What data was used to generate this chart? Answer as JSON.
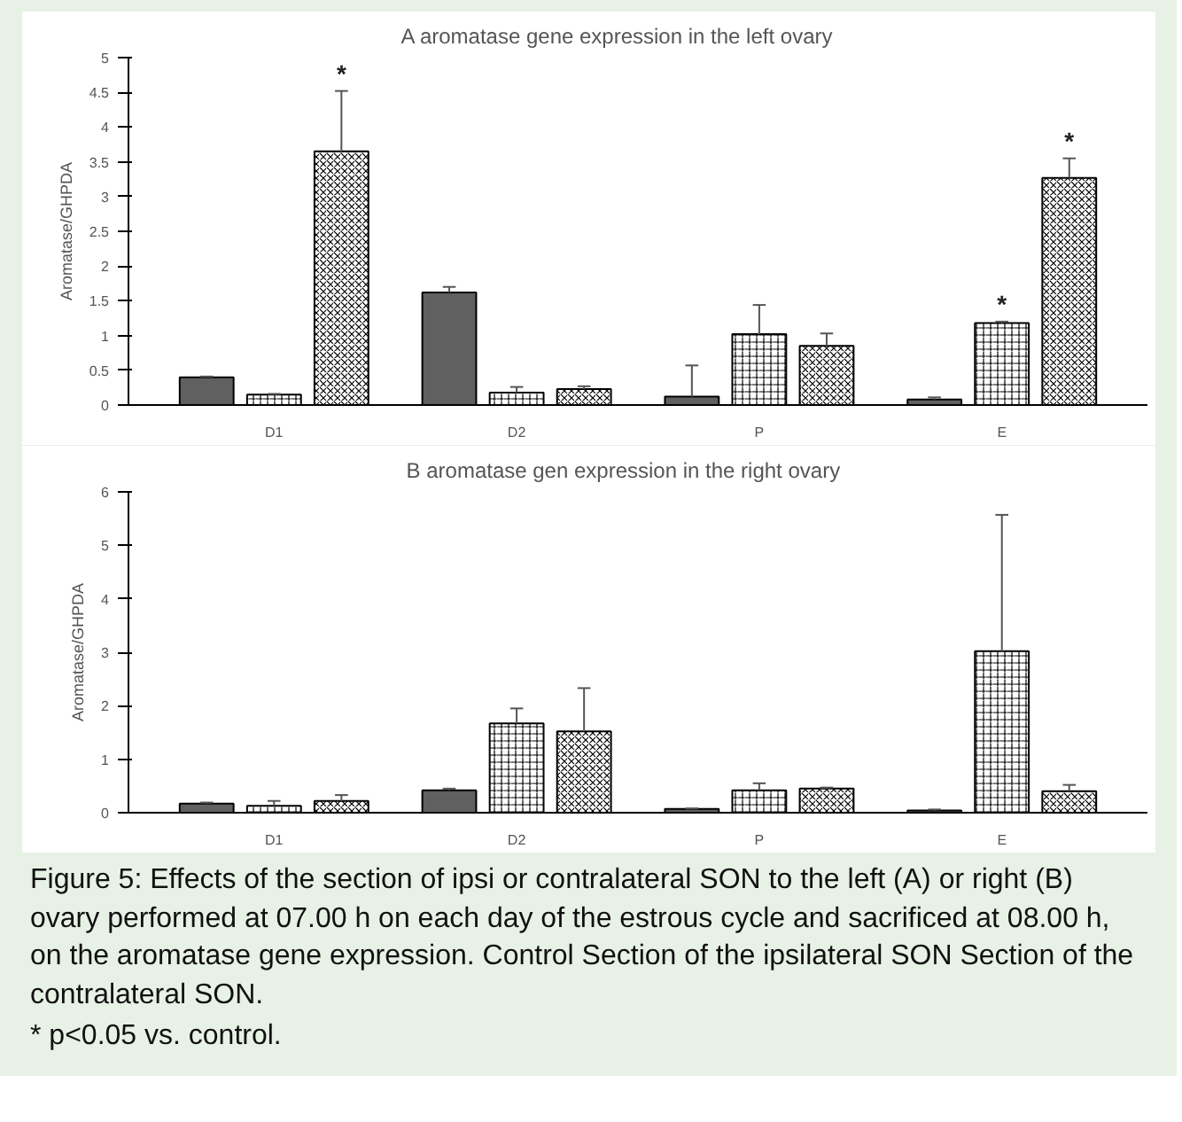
{
  "chart_data": [
    {
      "type": "bar",
      "title": "A        aromatase gene expression in the left ovary",
      "ylabel": "Aromatase/GHPDA",
      "categories": [
        "D1",
        "D2",
        "P",
        "E"
      ],
      "ylim": [
        0,
        5
      ],
      "yticks": [
        0,
        0.5,
        1,
        1.5,
        2,
        2.5,
        3,
        3.5,
        4,
        4.5,
        5
      ],
      "grid": false,
      "series": [
        {
          "color": "#606060",
          "values": [
            0.4,
            1.62,
            0.12,
            0.08
          ],
          "errors": [
            [
              0.4,
              0.41
            ],
            [
              1.62,
              1.7
            ],
            [
              0.12,
              0.57
            ],
            [
              0.08,
              0.11
            ]
          ]
        },
        {
          "color": "#ffffff",
          "values": [
            0.15,
            0.18,
            1.02,
            1.18
          ],
          "errors": [
            [
              0.15,
              0.16
            ],
            [
              0.18,
              0.26
            ],
            [
              1.02,
              1.44
            ],
            [
              1.18,
              1.2
            ]
          ],
          "value_labels": [
            null,
            null,
            null,
            "*"
          ]
        },
        {
          "color": "#ffffff",
          "values": [
            3.65,
            0.23,
            0.85,
            3.27
          ],
          "errors": [
            [
              3.65,
              4.52
            ],
            [
              0.23,
              0.27
            ],
            [
              0.85,
              1.03
            ],
            [
              3.27,
              3.55
            ]
          ],
          "value_labels": [
            "*",
            null,
            null,
            "*"
          ]
        }
      ]
    },
    {
      "type": "bar",
      "title": "B      aromatase gen expression in the right ovary",
      "ylabel": "Aromatase/GHPDA",
      "categories": [
        "D1",
        "D2",
        "P",
        "E"
      ],
      "ylim": [
        0,
        6
      ],
      "yticks": [
        0,
        1,
        2,
        3,
        4,
        5,
        6
      ],
      "grid": false,
      "series": [
        {
          "color": "#606060",
          "values": [
            0.17,
            0.42,
            0.07,
            0.04
          ],
          "errors": [
            [
              0.17,
              0.19
            ],
            [
              0.42,
              0.45
            ],
            [
              0.07,
              0.08
            ],
            [
              0.04,
              0.06
            ]
          ]
        },
        {
          "color": "#ffffff",
          "values": [
            0.13,
            1.67,
            0.42,
            3.02
          ],
          "errors": [
            [
              0.13,
              0.22
            ],
            [
              1.67,
              1.95
            ],
            [
              0.42,
              0.55
            ],
            [
              3.02,
              5.57
            ]
          ]
        },
        {
          "color": "#ffffff",
          "values": [
            0.22,
            1.52,
            0.45,
            0.4
          ],
          "errors": [
            [
              0.22,
              0.33
            ],
            [
              1.52,
              2.33
            ],
            [
              0.45,
              0.47
            ],
            [
              0.4,
              0.52
            ]
          ]
        }
      ],
      "annotations": [
        "Figure 5: Effects of the section of ipsi or contralateral SON to the left (A) or right (B) ovary performed at 07.00 h on each day of the estrous cycle and sacrificed at 08.00 h, on the aromatase gene expression. Control Section of the ipsilateral SON Section of the contralateral SON.",
        "* p<0.05 vs. control."
      ]
    }
  ]
}
